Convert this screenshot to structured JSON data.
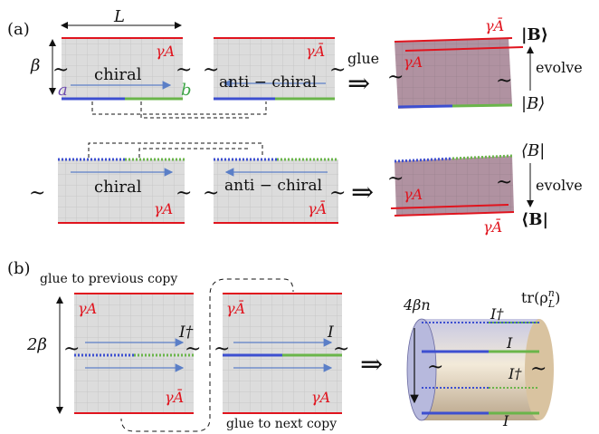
{
  "panel_a": {
    "tag": "(a)",
    "length_label": "L",
    "height_label": "β",
    "gamma_a": "γA",
    "gamma_abar": "γĀ",
    "chiral": "chiral",
    "anti_chiral": "anti − chiral",
    "point_a": "a",
    "point_b": "b",
    "glue": "glue",
    "evolve": "evolve",
    "ket_bold_B": "|B⟩",
    "ket_B": "|B⟩",
    "bra_B": "⟨B|",
    "bra_bold_B": "⟨B|",
    "arrow": "⇒",
    "tilde": "~"
  },
  "panel_b": {
    "tag": "(b)",
    "height_label": "2β",
    "gamma_a": "γA",
    "gamma_abar": "γĀ",
    "i_dagger": "I†",
    "i_plain": "I",
    "glue_prev": "glue to previous copy",
    "glue_next": "glue to next copy",
    "circumference": "4βn",
    "trace": "tr(ρ",
    "trace_sub": "L",
    "trace_sup": "n",
    "trace_close": ")",
    "arrow": "⇒",
    "tilde": "~"
  },
  "colors": {
    "grid_fill": "#dcdcdc",
    "boundary_red": "#e0141e",
    "blue": "#3d4fd0",
    "green": "#6ab54a",
    "purple_fill": "#9c6f8c",
    "arrow_blue": "#5b7fc7",
    "cylinder": "#d7c4a6"
  }
}
